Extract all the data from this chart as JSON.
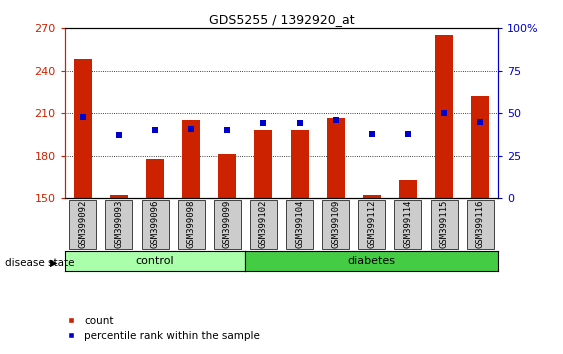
{
  "title": "GDS5255 / 1392920_at",
  "categories": [
    "GSM399092",
    "GSM399093",
    "GSM399096",
    "GSM399098",
    "GSM399099",
    "GSM399102",
    "GSM399104",
    "GSM399109",
    "GSM399112",
    "GSM399114",
    "GSM399115",
    "GSM399116"
  ],
  "count_values": [
    248,
    152,
    178,
    205,
    181,
    198,
    198,
    207,
    152,
    163,
    265,
    222
  ],
  "percentile_values": [
    48,
    37,
    40,
    41,
    40,
    44,
    44,
    46,
    38,
    38,
    50,
    45
  ],
  "ylim_left": [
    150,
    270
  ],
  "ylim_right": [
    0,
    100
  ],
  "yticks_left": [
    150,
    180,
    210,
    240,
    270
  ],
  "yticks_right": [
    0,
    25,
    50,
    75,
    100
  ],
  "bar_color": "#cc2200",
  "percentile_color": "#0000cc",
  "bg_color": "#ffffff",
  "control_color": "#aaffaa",
  "diabetes_color": "#44cc44",
  "label_bg_color": "#cccccc",
  "legend_count_label": "count",
  "legend_percentile_label": "percentile rank within the sample",
  "disease_state_label": "disease state",
  "control_label": "control",
  "diabetes_label": "diabetes",
  "n_control": 5,
  "n_diabetes": 7,
  "bar_width": 0.5,
  "percentile_marker_size": 22
}
